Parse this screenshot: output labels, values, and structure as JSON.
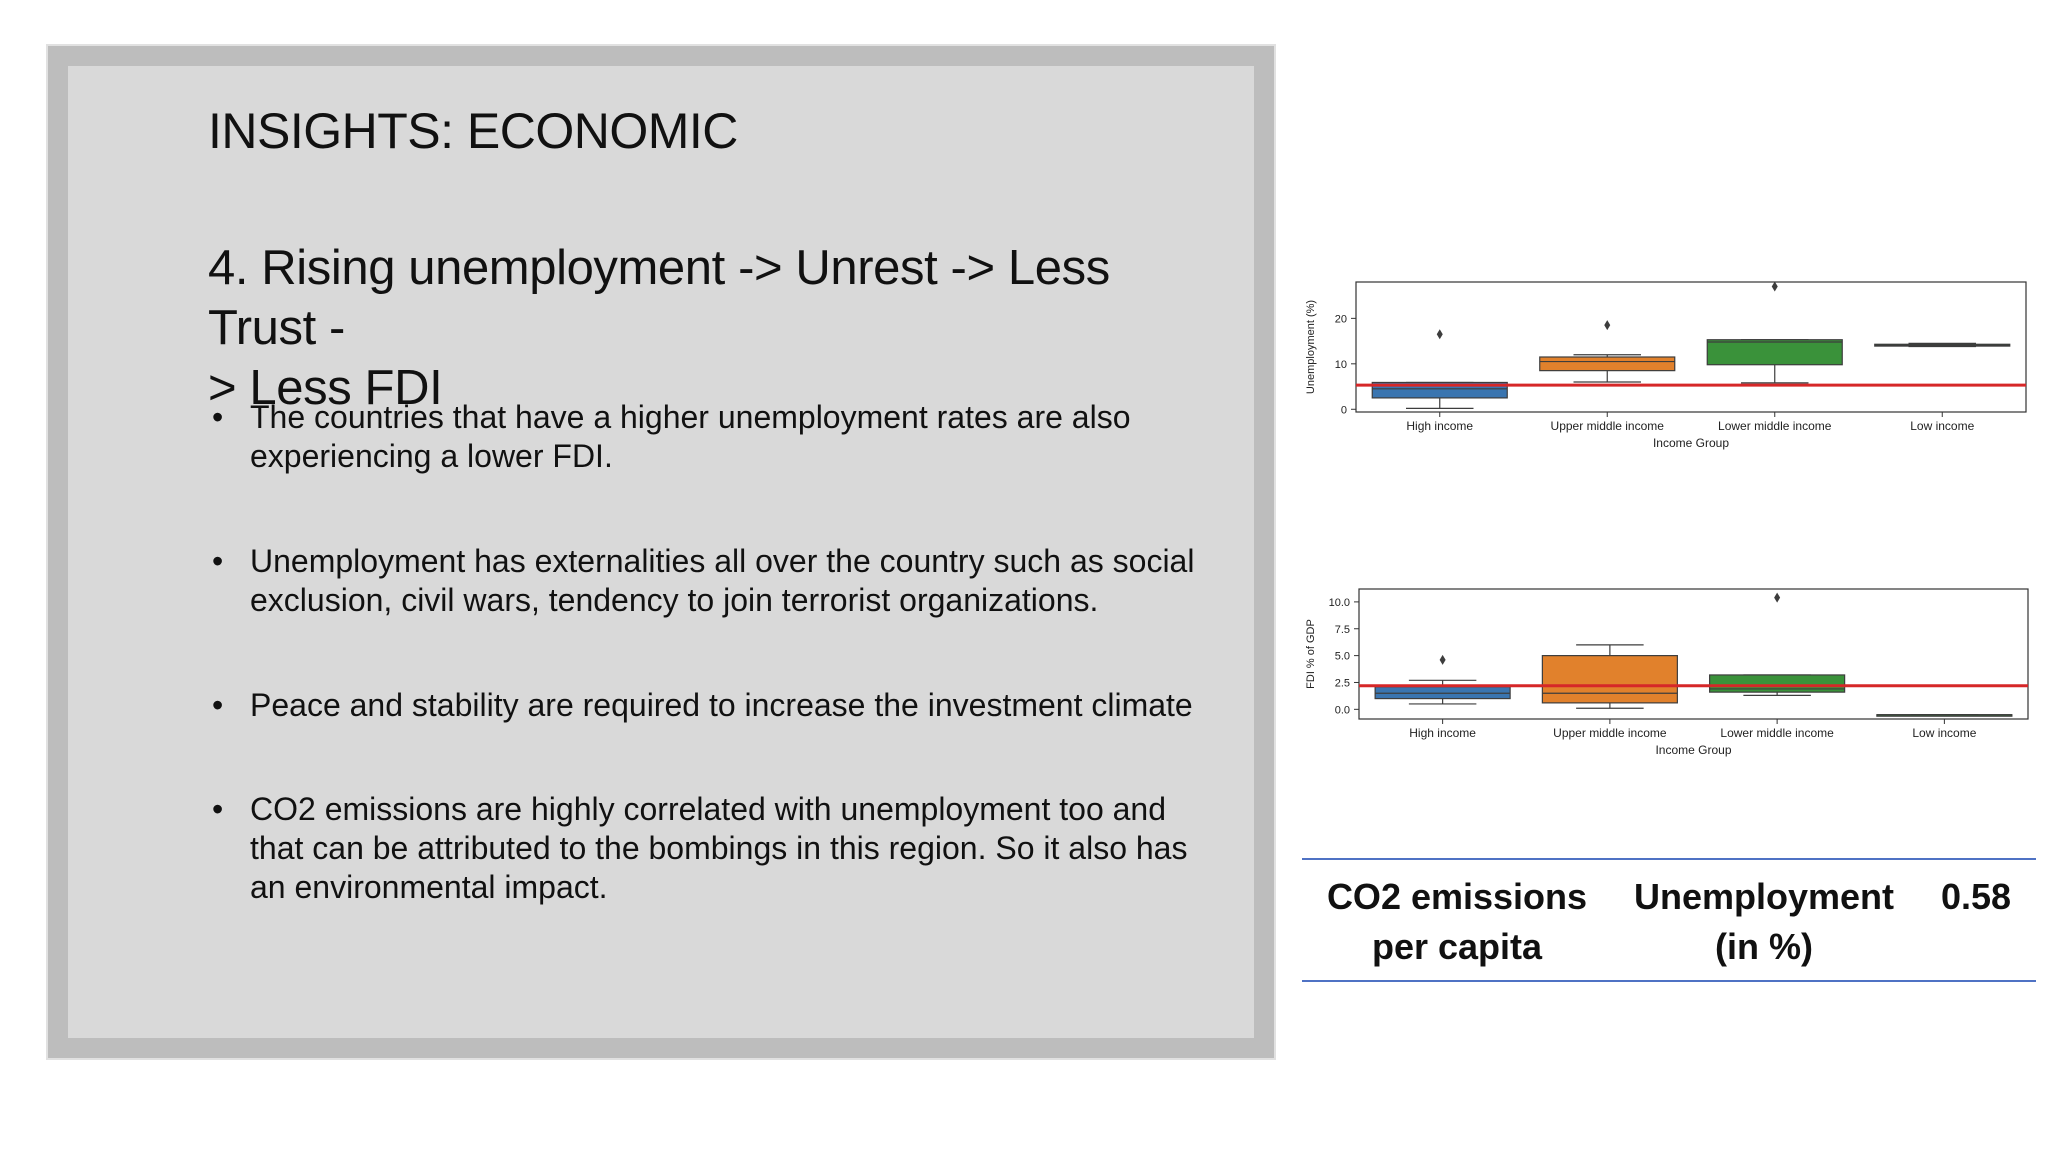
{
  "slide": {
    "title": "INSIGHTS: ECONOMIC",
    "subheading_line1": "4. Rising unemployment -> Unrest -> Less Trust -",
    "subheading_line2": "> Less FDI",
    "bullets": [
      "The countries that have a higher unemployment rates are also experiencing a lower FDI.",
      "Unemployment has externalities all over the country such as social exclusion, civil wars, tendency to join terrorist organizations.",
      "Peace and stability are required to increase the investment climate",
      "CO2 emissions are highly correlated with unemployment too and that can be attributed to the bombings in this region. So it also has an environmental impact."
    ]
  },
  "chart_data": [
    {
      "type": "box",
      "xlabel": "Income Group",
      "ylabel": "Unemployment (%)",
      "categories": [
        "High income",
        "Upper middle income",
        "Lower middle income",
        "Low income"
      ],
      "colors": [
        "#3a75b0",
        "#e1812c",
        "#3a923a",
        "#3a923a"
      ],
      "ylim": [
        -0.6,
        28
      ],
      "yticks": [
        0,
        10,
        20
      ],
      "ytick_labels": [
        "0",
        "10",
        "20"
      ],
      "boxes": [
        {
          "whisker_low": 0.2,
          "q1": 2.5,
          "median": 4.5,
          "q3": 5.9,
          "whisker_high": 5.9,
          "outliers": [
            16.5
          ]
        },
        {
          "whisker_low": 6.0,
          "q1": 8.5,
          "median": 10.5,
          "q3": 11.5,
          "whisker_high": 12.0,
          "outliers": [
            18.5
          ]
        },
        {
          "whisker_low": 5.8,
          "q1": 9.8,
          "median": 14.8,
          "q3": 15.3,
          "whisker_high": 15.3,
          "outliers": [
            27.0
          ]
        },
        {
          "whisker_low": 13.8,
          "q1": 13.9,
          "median": 14.1,
          "q3": 14.3,
          "whisker_high": 14.5,
          "outliers": []
        }
      ],
      "reference_line": {
        "y": 5.3,
        "color": "#d62728"
      }
    },
    {
      "type": "box",
      "xlabel": "Income Group",
      "ylabel": "FDI % of GDP",
      "categories": [
        "High income",
        "Upper middle income",
        "Lower middle income",
        "Low income"
      ],
      "colors": [
        "#3a75b0",
        "#e1812c",
        "#3a923a",
        "#3a923a"
      ],
      "ylim": [
        -0.9,
        11.2
      ],
      "yticks": [
        0,
        2.5,
        5,
        7.5,
        10
      ],
      "ytick_labels": [
        "0.0",
        "2.5",
        "5.0",
        "7.5",
        "10.0"
      ],
      "boxes": [
        {
          "whisker_low": 0.5,
          "q1": 1.0,
          "median": 1.5,
          "q3": 2.1,
          "whisker_high": 2.7,
          "outliers": [
            4.6
          ]
        },
        {
          "whisker_low": 0.1,
          "q1": 0.6,
          "median": 1.5,
          "q3": 5.0,
          "whisker_high": 6.0,
          "outliers": []
        },
        {
          "whisker_low": 1.3,
          "q1": 1.6,
          "median": 1.9,
          "q3": 3.2,
          "whisker_high": 3.2,
          "outliers": [
            10.4
          ]
        },
        {
          "whisker_low": -0.5,
          "q1": -0.5,
          "median": -0.5,
          "q3": -0.5,
          "whisker_high": -0.5,
          "outliers": []
        }
      ],
      "reference_line": {
        "y": 2.2,
        "color": "#d62728"
      }
    }
  ],
  "correlation_table": {
    "row": {
      "var1": "CO2 emissions per capita",
      "var1_line1": "CO2 emissions",
      "var1_line2": "per capita",
      "var2_line1": "Unemployment",
      "var2_line2": "(in %)",
      "value": "0.58"
    }
  }
}
